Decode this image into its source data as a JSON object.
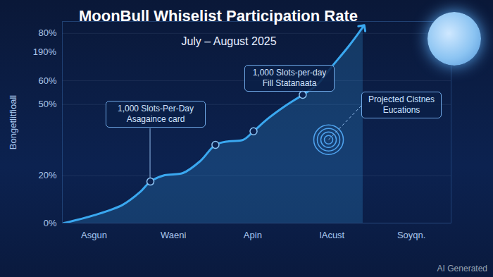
{
  "chart_data": {
    "type": "line",
    "title": "MoonBull Whiselist Participation Rate",
    "subtitle": "July – August 2025",
    "y_label": "Bongetlitfioall",
    "x": [
      -0.38,
      0,
      0.36,
      0.58,
      0.71,
      0.89,
      1.12,
      1.34,
      1.53,
      1.7,
      1.88,
      2.01,
      2.19,
      2.41,
      2.63,
      2.81,
      2.99,
      3.21,
      3.39
    ],
    "values": [
      0,
      3.3,
      7.7,
      13.1,
      17.5,
      20.2,
      21.1,
      26.2,
      33.0,
      34.5,
      35.1,
      38.7,
      44.0,
      49.4,
      54.1,
      58.3,
      65.7,
      74.6,
      82.7
    ],
    "color": "#3aa8f0",
    "marker": "circle",
    "xlim": [
      -0.4,
      4.5
    ],
    "xticks": [
      {
        "value": 0,
        "label": "Asgun"
      },
      {
        "value": 1,
        "label": "Waeni"
      },
      {
        "value": 2,
        "label": "Apin"
      },
      {
        "value": 3,
        "label": "lAcust"
      },
      {
        "value": 4,
        "label": "Soyqn."
      }
    ],
    "ylim": [
      0,
      85
    ],
    "yticks": [
      {
        "value": 0,
        "label": "0%"
      },
      {
        "value": 20,
        "label": "20%"
      },
      {
        "value": 50,
        "label": "50%"
      },
      {
        "value": 60,
        "label": "60%"
      },
      {
        "value": 80,
        "label": "80%"
      }
    ],
    "grid": true,
    "annotations": [
      {
        "lines": [
          "1,000 Slots-Per-Day",
          "Asagaince card"
        ]
      },
      {
        "lines": [
          "1,000 Slots-per-day",
          "Fill Statanaata"
        ]
      },
      {
        "lines": [
          "Projected Cistnes",
          "Eucations"
        ]
      },
      {
        "lines": [
          "190%"
        ]
      }
    ],
    "watermark": "AI Generated"
  }
}
